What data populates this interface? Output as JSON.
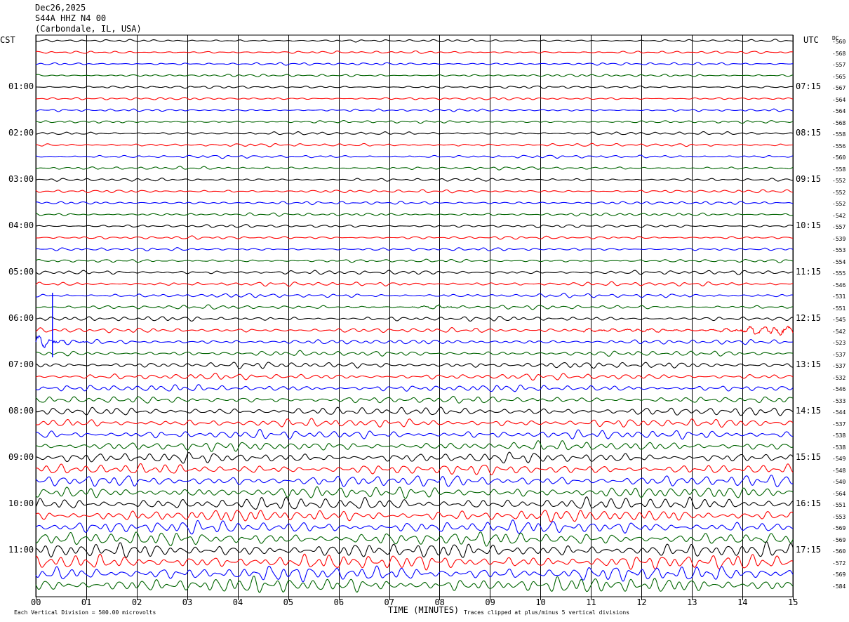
{
  "header": {
    "date": "Dec26,2025",
    "station": "S44A HHZ N4 00",
    "location": "(Carbondale, IL, USA)"
  },
  "left_tz": "CST",
  "right_tz": "UTC",
  "dc_label": "DC",
  "footer": {
    "scale_note": "Each Vertical Division =  500.00 microvolts",
    "clip_note": "Traces clipped at plus/minus 5 vertical divisions"
  },
  "chart_data": {
    "type": "line",
    "xlabel": "TIME (MINUTES)",
    "xlim": [
      0,
      15
    ],
    "x_ticks": [
      "00",
      "01",
      "02",
      "03",
      "04",
      "05",
      "06",
      "07",
      "08",
      "09",
      "10",
      "11",
      "12",
      "13",
      "14",
      "15"
    ],
    "left_hour_labels": [
      "01:00",
      "02:00",
      "03:00",
      "04:00",
      "05:00",
      "06:00",
      "07:00",
      "08:00",
      "09:00",
      "10:00",
      "11:00"
    ],
    "right_hour_labels": [
      "07:15",
      "08:15",
      "09:15",
      "10:15",
      "11:15",
      "12:15",
      "13:15",
      "14:15",
      "15:15",
      "16:15",
      "17:15"
    ],
    "hour_label_rows": [
      4,
      8,
      12,
      16,
      20,
      24,
      28,
      32,
      36,
      40,
      44
    ],
    "trace_colors": [
      "#000000",
      "#ff0000",
      "#0000ff",
      "#006400"
    ],
    "trace_count": 48,
    "dc_offsets": [
      -560,
      -568,
      -557,
      -565,
      -567,
      -564,
      -564,
      -568,
      -558,
      -556,
      -560,
      -558,
      -552,
      -552,
      -552,
      -542,
      -557,
      -539,
      -553,
      -554,
      -555,
      -546,
      -531,
      -551,
      -545,
      -542,
      -523,
      -537,
      -537,
      -532,
      -546,
      -533,
      -544,
      -537,
      -538,
      -538,
      -549,
      -548,
      -540,
      -564,
      -551,
      -553,
      -569,
      -569,
      -560,
      -572,
      -569,
      -584
    ],
    "amplitude_profile": [
      0.25,
      0.25,
      0.25,
      0.25,
      0.25,
      0.25,
      0.25,
      0.25,
      0.3,
      0.3,
      0.3,
      0.3,
      0.3,
      0.3,
      0.3,
      0.3,
      0.3,
      0.3,
      0.3,
      0.3,
      0.4,
      0.4,
      0.4,
      0.4,
      0.45,
      0.45,
      0.45,
      0.5,
      0.6,
      0.6,
      0.65,
      0.65,
      0.8,
      0.8,
      0.85,
      0.9,
      1.0,
      1.0,
      1.1,
      1.1,
      1.25,
      1.2,
      1.25,
      1.3,
      1.4,
      1.45,
      1.45,
      1.5
    ],
    "events": [
      {
        "row": 23,
        "start_min": 6.2,
        "end_min": 8.3,
        "gain": 2.2
      },
      {
        "row": 25,
        "start_min": 10.8,
        "end_min": 15.0,
        "gain": 3.2
      },
      {
        "row": 26,
        "start_min": 0.0,
        "end_min": 1.0,
        "gain": 5.0
      }
    ]
  }
}
